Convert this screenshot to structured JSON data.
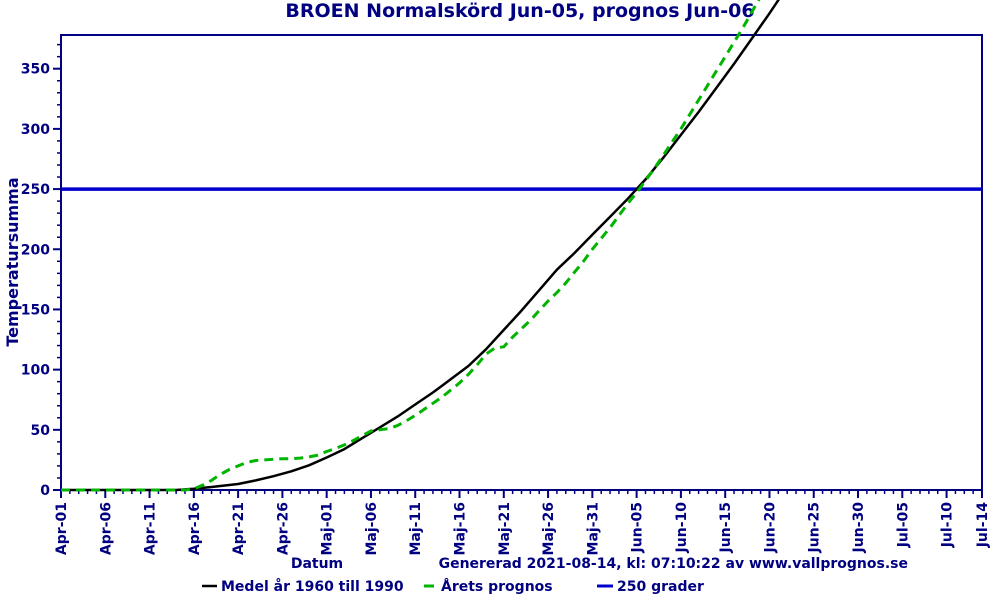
{
  "colors": {
    "text_navy": "#000080",
    "axis_navy": "#000080",
    "normal_line": "#000000",
    "forecast_line": "#00b400",
    "threshold_line": "#0000cc",
    "background": "#ffffff"
  },
  "footer": {
    "generated": "Genererad 2021-08-14, kl: 07:10:22 av www.vallprognos.se"
  },
  "chart_data": {
    "type": "line",
    "title": "BROEN Normalskörd Jun-05, prognos Jun-06",
    "xlabel": "Datum",
    "ylabel": "Temperatursumma",
    "ylim": [
      0,
      378
    ],
    "x_range_days": [
      0,
      104
    ],
    "y_major_ticks": [
      0,
      50,
      100,
      150,
      200,
      250,
      300,
      350
    ],
    "y_minor_step": 10,
    "x_tick_days": [
      0,
      5,
      10,
      15,
      20,
      25,
      30,
      35,
      40,
      45,
      50,
      55,
      60,
      65,
      70,
      75,
      80,
      85,
      90,
      95,
      100,
      104
    ],
    "x_tick_labels": [
      "Apr-01",
      "Apr-06",
      "Apr-11",
      "Apr-16",
      "Apr-21",
      "Apr-26",
      "Maj-01",
      "Maj-06",
      "Maj-11",
      "Maj-16",
      "Maj-21",
      "Maj-26",
      "Maj-31",
      "Jun-05",
      "Jun-10",
      "Jun-15",
      "Jun-20",
      "Jun-25",
      "Jun-30",
      "Jul-05",
      "Jul-10",
      "Jul-14"
    ],
    "x_minor_step_days": 1,
    "grid": false,
    "legend_position": "bottom",
    "threshold": {
      "value": 250,
      "label": "250 grader",
      "color": "#0000cc"
    },
    "series": [
      {
        "name": "Medel år 1960 till 1990",
        "style": "solid",
        "color": "#000000",
        "points": [
          [
            0,
            0
          ],
          [
            5,
            0
          ],
          [
            10,
            0
          ],
          [
            13,
            0
          ],
          [
            15,
            1
          ],
          [
            17,
            2.5
          ],
          [
            20,
            5
          ],
          [
            22,
            8
          ],
          [
            24,
            11.5
          ],
          [
            26,
            15.5
          ],
          [
            28,
            20.5
          ],
          [
            30,
            27
          ],
          [
            32,
            34
          ],
          [
            34,
            43
          ],
          [
            36,
            52
          ],
          [
            38,
            61
          ],
          [
            40,
            71
          ],
          [
            42,
            81
          ],
          [
            44,
            92
          ],
          [
            46,
            103
          ],
          [
            48,
            117
          ],
          [
            50,
            133
          ],
          [
            52,
            149
          ],
          [
            54,
            166
          ],
          [
            56,
            183
          ],
          [
            58,
            197
          ],
          [
            60,
            212
          ],
          [
            62,
            227
          ],
          [
            64,
            242
          ],
          [
            65,
            250
          ],
          [
            66,
            258
          ],
          [
            68,
            276
          ],
          [
            70,
            295
          ],
          [
            72,
            314
          ],
          [
            74,
            334
          ],
          [
            76,
            354
          ],
          [
            78,
            375
          ],
          [
            80,
            396
          ],
          [
            82,
            418
          ]
        ]
      },
      {
        "name": "Årets prognos",
        "style": "dashed",
        "color": "#00b400",
        "points": [
          [
            0,
            0
          ],
          [
            5,
            0
          ],
          [
            10,
            0
          ],
          [
            14,
            0
          ],
          [
            15,
            1
          ],
          [
            16,
            4
          ],
          [
            17,
            8
          ],
          [
            18,
            13
          ],
          [
            19,
            17
          ],
          [
            20,
            20
          ],
          [
            21,
            23
          ],
          [
            22,
            24.5
          ],
          [
            23,
            25
          ],
          [
            24,
            25.5
          ],
          [
            25,
            26
          ],
          [
            26,
            26
          ],
          [
            27,
            26.5
          ],
          [
            28,
            27.5
          ],
          [
            29,
            29
          ],
          [
            30,
            32
          ],
          [
            31,
            34.5
          ],
          [
            32,
            37.5
          ],
          [
            33,
            41
          ],
          [
            34,
            45
          ],
          [
            35,
            49
          ],
          [
            36,
            50
          ],
          [
            37,
            51
          ],
          [
            38,
            53.5
          ],
          [
            39,
            57.5
          ],
          [
            40,
            62
          ],
          [
            41,
            67
          ],
          [
            42,
            72
          ],
          [
            43,
            77
          ],
          [
            44,
            83
          ],
          [
            45,
            89
          ],
          [
            46,
            96
          ],
          [
            47,
            104
          ],
          [
            48,
            113
          ],
          [
            49,
            118
          ],
          [
            50,
            119
          ],
          [
            51,
            127
          ],
          [
            52,
            134
          ],
          [
            53,
            141
          ],
          [
            54,
            149
          ],
          [
            55,
            157
          ],
          [
            56,
            164
          ],
          [
            57,
            172
          ],
          [
            58,
            181
          ],
          [
            59,
            190
          ],
          [
            60,
            200
          ],
          [
            61,
            209
          ],
          [
            62,
            218
          ],
          [
            63,
            228
          ],
          [
            64,
            238
          ],
          [
            65,
            247
          ],
          [
            66,
            257
          ],
          [
            67,
            267
          ],
          [
            68,
            278
          ],
          [
            69,
            289
          ],
          [
            70,
            300
          ],
          [
            71,
            312
          ],
          [
            72,
            324
          ],
          [
            73,
            336
          ],
          [
            74,
            348
          ],
          [
            75,
            360
          ],
          [
            76,
            372
          ],
          [
            77,
            384
          ],
          [
            78,
            397
          ],
          [
            79,
            410
          ],
          [
            80,
            423
          ]
        ]
      }
    ]
  }
}
